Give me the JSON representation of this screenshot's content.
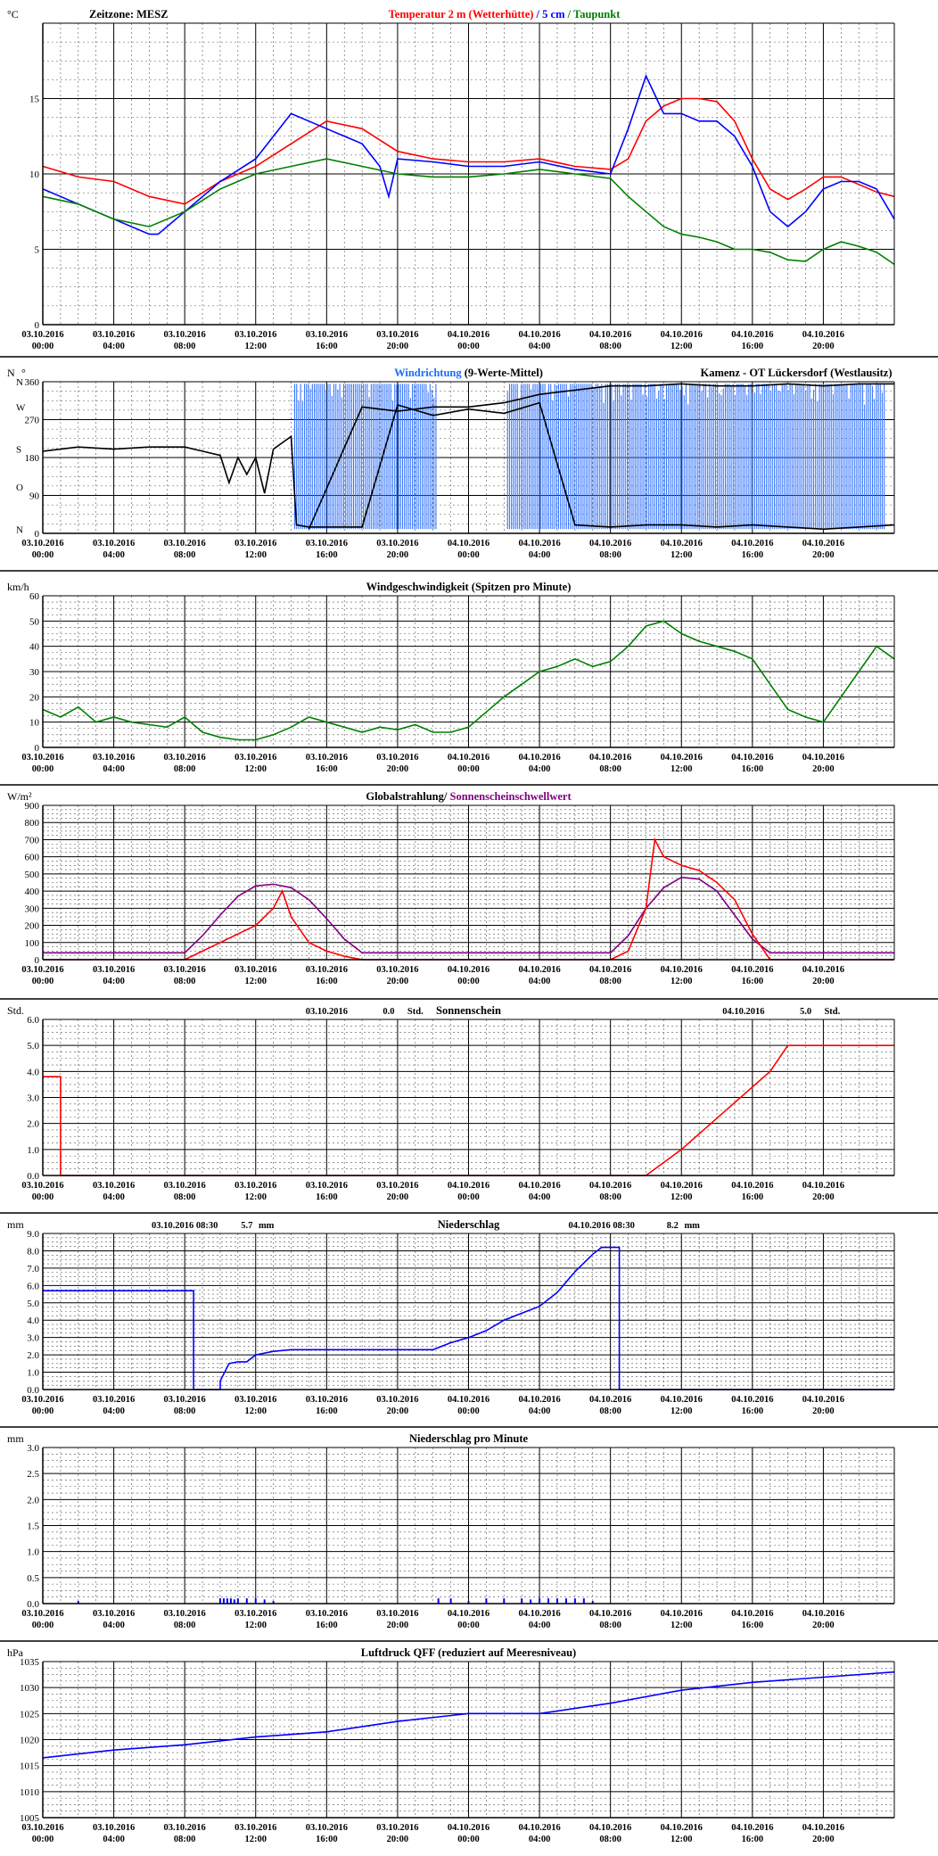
{
  "page": {
    "time_ticks": [
      [
        "03.10.2016",
        "00:00"
      ],
      [
        "03.10.2016",
        "04:00"
      ],
      [
        "03.10.2016",
        "08:00"
      ],
      [
        "03.10.2016",
        "12:00"
      ],
      [
        "03.10.2016",
        "16:00"
      ],
      [
        "03.10.2016",
        "20:00"
      ],
      [
        "04.10.2016",
        "00:00"
      ],
      [
        "04.10.2016",
        "04:00"
      ],
      [
        "04.10.2016",
        "08:00"
      ],
      [
        "04.10.2016",
        "12:00"
      ],
      [
        "04.10.2016",
        "16:00"
      ],
      [
        "04.10.2016",
        "20:00"
      ]
    ],
    "hours_total": 48
  },
  "chart_data": [
    {
      "id": "temperature",
      "type": "line",
      "unit": "°C",
      "ylim": [
        0,
        20
      ],
      "yticks": [
        0,
        5,
        10,
        15
      ],
      "titles": [
        {
          "text": "Zeitzone: MESZ",
          "color": "#000000",
          "pos": "left"
        },
        {
          "text": "Temperatur 2 m (Wetterhütte)",
          "color": "#ff0000",
          "pos": "center"
        },
        {
          "text": " / ",
          "color": "#0000ff",
          "pos": "center"
        },
        {
          "text": "5 cm",
          "color": "#0000ff",
          "pos": "center"
        },
        {
          "text": " / ",
          "color": "#008000",
          "pos": "center"
        },
        {
          "text": "Taupunkt",
          "color": "#008000",
          "pos": "center"
        }
      ],
      "series": [
        {
          "color": "#ff0000",
          "x": [
            0,
            2,
            4,
            6,
            8,
            10,
            12,
            14,
            16,
            18,
            20,
            22,
            24,
            26,
            28,
            30,
            32,
            33,
            34,
            35,
            36,
            37,
            38,
            39,
            40,
            41,
            42,
            43,
            44,
            45,
            46,
            47,
            48
          ],
          "y": [
            10.5,
            9.8,
            9.5,
            8.5,
            8.0,
            9.5,
            10.5,
            12.0,
            13.5,
            13.0,
            11.5,
            11.0,
            10.8,
            10.8,
            11.0,
            10.5,
            10.3,
            11.0,
            13.5,
            14.5,
            15.0,
            15.0,
            14.8,
            13.5,
            11.0,
            9.0,
            8.3,
            9.0,
            9.8,
            9.8,
            9.3,
            8.8,
            8.5
          ]
        },
        {
          "color": "#0000ff",
          "x": [
            0,
            2,
            4,
            6,
            6.5,
            8,
            10,
            12,
            14,
            15,
            16,
            18,
            19,
            19.5,
            20,
            22,
            24,
            26,
            28,
            30,
            32,
            33,
            34,
            35,
            36,
            37,
            38,
            39,
            40,
            41,
            42,
            43,
            44,
            45,
            46,
            47,
            48
          ],
          "y": [
            9.0,
            8.0,
            7.0,
            6.0,
            6.0,
            7.5,
            9.5,
            11.0,
            14.0,
            13.5,
            13.0,
            12.0,
            10.5,
            8.5,
            11.0,
            10.8,
            10.5,
            10.5,
            10.8,
            10.3,
            10.0,
            13.0,
            16.5,
            14.0,
            14.0,
            13.5,
            13.5,
            12.5,
            10.5,
            7.5,
            6.5,
            7.5,
            9.0,
            9.5,
            9.5,
            9.0,
            7.0
          ]
        },
        {
          "color": "#008000",
          "x": [
            0,
            2,
            4,
            6,
            8,
            10,
            12,
            14,
            16,
            18,
            20,
            22,
            24,
            26,
            28,
            30,
            32,
            33,
            34,
            35,
            36,
            37,
            38,
            39,
            40,
            41,
            42,
            43,
            44,
            45,
            46,
            47,
            48
          ],
          "y": [
            8.5,
            8.0,
            7.0,
            6.5,
            7.5,
            9.0,
            10.0,
            10.5,
            11.0,
            10.5,
            10.0,
            9.8,
            9.8,
            10.0,
            10.3,
            10.0,
            9.7,
            8.5,
            7.5,
            6.5,
            6.0,
            5.8,
            5.5,
            5.0,
            5.0,
            4.8,
            4.3,
            4.2,
            5.0,
            5.5,
            5.2,
            4.8,
            4.0
          ]
        }
      ]
    },
    {
      "id": "winddir",
      "type": "line",
      "unit": "N",
      "unit_suffix": "°",
      "ylim": [
        0,
        360
      ],
      "yticks": [
        0,
        90,
        180,
        270,
        360
      ],
      "side_labels": [
        {
          "text": "N",
          "value": 360
        },
        {
          "text": "W",
          "value": 300
        },
        {
          "text": "S",
          "value": 200
        },
        {
          "text": "O",
          "value": 110
        },
        {
          "text": "N",
          "value": 10
        }
      ],
      "titles": [
        {
          "text": "Windrichtung",
          "color": "#1a6dff",
          "pos": "center"
        },
        {
          "text": " (9-Werte-Mittel)",
          "color": "#000000",
          "pos": "center"
        },
        {
          "text": "Kamenz - OT Lückersdorf (Westlausitz)",
          "color": "#000000",
          "pos": "right"
        }
      ],
      "series": [
        {
          "color": "#000000",
          "x": [
            0,
            2,
            4,
            6,
            8,
            9,
            10,
            10.5,
            11,
            11.5,
            12,
            12.5,
            13,
            14,
            14.3,
            15,
            16,
            18,
            20,
            22,
            24,
            26,
            28,
            30,
            32,
            34,
            36,
            38,
            40,
            42,
            44,
            46,
            48
          ],
          "y": [
            195,
            205,
            200,
            205,
            205,
            195,
            185,
            120,
            180,
            140,
            180,
            95,
            200,
            230,
            20,
            15,
            15,
            15,
            305,
            280,
            295,
            285,
            310,
            20,
            15,
            20,
            20,
            15,
            20,
            15,
            10,
            15,
            20
          ]
        },
        {
          "color": "#000000",
          "x": [
            15,
            18,
            20,
            22,
            24,
            26,
            28,
            30,
            32,
            34,
            36,
            38,
            40,
            42,
            44,
            46,
            48
          ],
          "y": [
            10,
            300,
            290,
            300,
            300,
            310,
            330,
            340,
            350,
            350,
            355,
            350,
            350,
            355,
            350,
            355,
            355
          ]
        }
      ],
      "bands": [
        {
          "color": "#3a78ff",
          "x_from": 14.2,
          "x_to": 22.2,
          "y_from": 10,
          "y_to": 355
        },
        {
          "color": "#3a78ff",
          "x_from": 26.2,
          "x_to": 47.5,
          "y_from": 10,
          "y_to": 355
        }
      ]
    },
    {
      "id": "windspeed",
      "type": "line",
      "unit": "km/h",
      "ylim": [
        0,
        60
      ],
      "yticks": [
        0,
        10,
        20,
        30,
        40,
        50,
        60
      ],
      "titles": [
        {
          "text": "Windgeschwindigkeit (Spitzen pro Minute)",
          "color": "#000000",
          "pos": "center"
        }
      ],
      "series": [
        {
          "color": "#008000",
          "x": [
            0,
            1,
            2,
            3,
            4,
            5,
            6,
            7,
            8,
            9,
            10,
            11,
            12,
            13,
            14,
            15,
            16,
            17,
            18,
            19,
            20,
            21,
            22,
            23,
            24,
            25,
            26,
            27,
            28,
            29,
            30,
            31,
            32,
            33,
            34,
            35,
            36,
            37,
            38,
            39,
            40,
            41,
            42,
            43,
            44,
            45,
            46,
            47,
            48
          ],
          "y": [
            15,
            12,
            16,
            10,
            12,
            10,
            9,
            8,
            12,
            6,
            4,
            3,
            3,
            5,
            8,
            12,
            10,
            8,
            6,
            8,
            7,
            9,
            6,
            6,
            8,
            14,
            20,
            25,
            30,
            32,
            35,
            32,
            34,
            40,
            48,
            50,
            45,
            42,
            40,
            38,
            35,
            25,
            15,
            12,
            10,
            20,
            30,
            40,
            35
          ]
        }
      ]
    },
    {
      "id": "radiation",
      "type": "line",
      "unit": "W/m²",
      "ylim": [
        0,
        900
      ],
      "yticks": [
        0,
        100,
        200,
        300,
        400,
        500,
        600,
        700,
        800,
        900
      ],
      "titles": [
        {
          "text": "Globalstrahlung",
          "color": "#000000",
          "pos": "center"
        },
        {
          "text": "/ ",
          "color": "#000000",
          "pos": "center"
        },
        {
          "text": "Sonnenscheinschwellwert",
          "color": "#800080",
          "pos": "center"
        }
      ],
      "series": [
        {
          "color": "#800080",
          "x": [
            0,
            8,
            9,
            10,
            11,
            12,
            13,
            14,
            15,
            16,
            17,
            18,
            32,
            33,
            34,
            35,
            36,
            37,
            38,
            39,
            40,
            41,
            48
          ],
          "y": [
            40,
            40,
            140,
            260,
            370,
            430,
            440,
            420,
            350,
            240,
            120,
            40,
            40,
            140,
            300,
            420,
            480,
            470,
            400,
            260,
            120,
            40,
            40
          ]
        },
        {
          "color": "#ff0000",
          "x": [
            0,
            8,
            9,
            10,
            11,
            12,
            13,
            13.5,
            14,
            15,
            16,
            17,
            18,
            32,
            33,
            34,
            34.5,
            35,
            36,
            37,
            38,
            39,
            40,
            41,
            48
          ],
          "y": [
            0,
            0,
            50,
            100,
            150,
            200,
            300,
            400,
            250,
            100,
            50,
            20,
            0,
            0,
            50,
            300,
            700,
            600,
            550,
            520,
            450,
            350,
            150,
            0,
            0
          ]
        }
      ]
    },
    {
      "id": "sunshine",
      "type": "line",
      "unit": "Std.",
      "ylim": [
        0,
        6
      ],
      "yticks": [
        0.0,
        1.0,
        2.0,
        3.0,
        4.0,
        5.0,
        6.0
      ],
      "decimals": 1,
      "titles": [
        {
          "text": "03.10.2016",
          "color": "#000000",
          "pos": "at",
          "at_hour": 16
        },
        {
          "text": "0.0",
          "color": "#000000",
          "pos": "at",
          "at_hour": 19.5
        },
        {
          "text": "Std.",
          "color": "#000000",
          "pos": "at",
          "at_hour": 21
        },
        {
          "text": "Sonnenschein",
          "color": "#000000",
          "pos": "center"
        },
        {
          "text": "04.10.2016",
          "color": "#000000",
          "pos": "at",
          "at_hour": 39.5
        },
        {
          "text": "5.0",
          "color": "#000000",
          "pos": "at",
          "at_hour": 43
        },
        {
          "text": "Std.",
          "color": "#000000",
          "pos": "at",
          "at_hour": 44.5
        }
      ],
      "series": [
        {
          "color": "#ff0000",
          "x": [
            0,
            1,
            1,
            34,
            36,
            38,
            40,
            41,
            42,
            48
          ],
          "y": [
            3.8,
            3.8,
            0,
            0,
            1.0,
            2.2,
            3.4,
            4.0,
            5.0,
            5.0
          ]
        }
      ]
    },
    {
      "id": "precip",
      "type": "line",
      "unit": "mm",
      "ylim": [
        0,
        9
      ],
      "yticks": [
        0.0,
        1.0,
        2.0,
        3.0,
        4.0,
        5.0,
        6.0,
        7.0,
        8.0,
        9.0
      ],
      "decimals": 1,
      "titles": [
        {
          "text": "03.10.2016 08:30",
          "color": "#000000",
          "pos": "at",
          "at_hour": 8
        },
        {
          "text": "5.7",
          "color": "#000000",
          "pos": "at",
          "at_hour": 11.5
        },
        {
          "text": "mm",
          "color": "#000000",
          "pos": "at",
          "at_hour": 12.6
        },
        {
          "text": "Niederschlag",
          "color": "#000000",
          "pos": "center"
        },
        {
          "text": "04.10.2016 08:30",
          "color": "#000000",
          "pos": "at",
          "at_hour": 31.5
        },
        {
          "text": "8.2",
          "color": "#000000",
          "pos": "at",
          "at_hour": 35.5
        },
        {
          "text": "mm",
          "color": "#000000",
          "pos": "at",
          "at_hour": 36.6
        }
      ],
      "series": [
        {
          "color": "#0000ff",
          "x": [
            0,
            8.5,
            8.5,
            10,
            10,
            10.5,
            11,
            11.5,
            12,
            13,
            14,
            16,
            18,
            22,
            23,
            24,
            25,
            26,
            27,
            28,
            29,
            30,
            31,
            31.5,
            32.5,
            32.5,
            48
          ],
          "y": [
            5.7,
            5.7,
            0,
            0,
            0.5,
            1.5,
            1.6,
            1.6,
            2.0,
            2.2,
            2.3,
            2.3,
            2.3,
            2.3,
            2.7,
            3.0,
            3.4,
            4.0,
            4.4,
            4.8,
            5.6,
            6.8,
            7.8,
            8.2,
            8.2,
            0,
            0
          ]
        }
      ]
    },
    {
      "id": "precip_min",
      "type": "bar",
      "unit": "mm",
      "ylim": [
        0,
        3
      ],
      "yticks": [
        0.0,
        0.5,
        1.0,
        1.5,
        2.0,
        2.5,
        3.0
      ],
      "decimals": 1,
      "titles": [
        {
          "text": "Niederschlag pro Minute",
          "color": "#000000",
          "pos": "center"
        }
      ],
      "series": [
        {
          "color": "#0000ff",
          "x": [
            2,
            10,
            10.2,
            10.4,
            10.6,
            10.8,
            11,
            11.5,
            12,
            12.5,
            13,
            22.3,
            23,
            24,
            25,
            26,
            27,
            27.5,
            28,
            28.5,
            29,
            29.5,
            30,
            30.5,
            31
          ],
          "y": [
            0.05,
            0.1,
            0.1,
            0.1,
            0.1,
            0.08,
            0.1,
            0.1,
            0.1,
            0.08,
            0.05,
            0.1,
            0.1,
            0.05,
            0.1,
            0.1,
            0.1,
            0.08,
            0.1,
            0.1,
            0.1,
            0.1,
            0.1,
            0.1,
            0.05
          ]
        }
      ]
    },
    {
      "id": "pressure",
      "type": "line",
      "unit": "hPa",
      "ylim": [
        1005,
        1035
      ],
      "yticks": [
        1005,
        1010,
        1015,
        1020,
        1025,
        1030,
        1035
      ],
      "titles": [
        {
          "text": "Luftdruck QFF (reduziert auf Meeresniveau)",
          "color": "#000000",
          "pos": "center"
        }
      ],
      "series": [
        {
          "color": "#0000ff",
          "x": [
            0,
            4,
            8,
            12,
            16,
            20,
            24,
            28,
            32,
            36,
            40,
            44,
            48
          ],
          "y": [
            1016.5,
            1018,
            1019,
            1020.5,
            1021.5,
            1023.5,
            1025,
            1025,
            1027,
            1029.5,
            1031,
            1032,
            1033
          ]
        }
      ]
    }
  ]
}
